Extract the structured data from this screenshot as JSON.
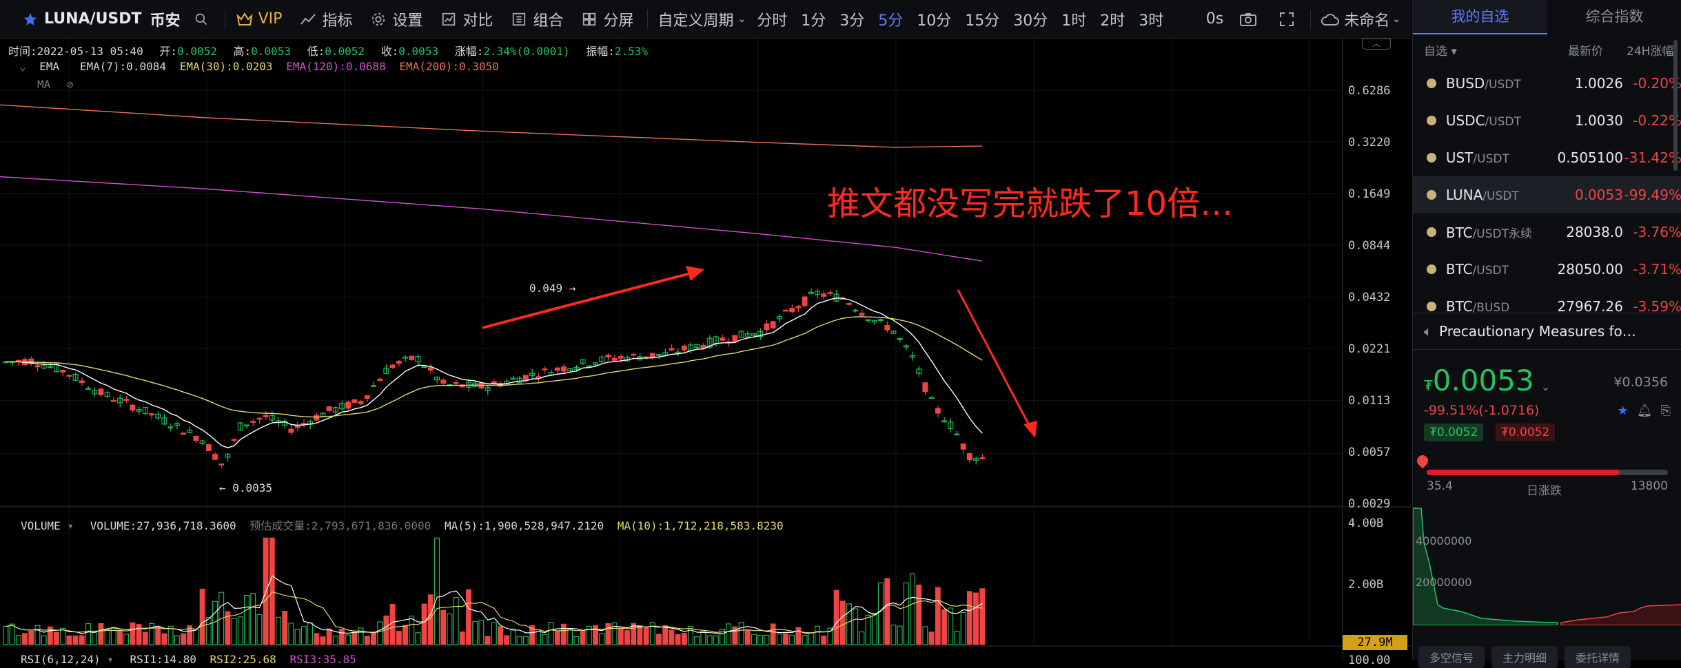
{
  "toolbar": {
    "symbol": "LUNA/USDT",
    "exchange": "币安",
    "vip": "VIP",
    "indicators": "指标",
    "settings": "设置",
    "compare": "对比",
    "combo": "组合",
    "split": "分屏",
    "custom_period": "自定义周期",
    "periods": [
      "分时",
      "1分",
      "3分",
      "5分",
      "10分",
      "15分",
      "30分",
      "1时",
      "2时",
      "3时"
    ],
    "active_period": "5分",
    "countdown": "0s",
    "cloud_label": "未命名"
  },
  "ohlc": {
    "time_label": "时间:",
    "time": "2022-05-13 05:40",
    "open_label": "开:",
    "open": "0.0052",
    "high_label": "高:",
    "high": "0.0053",
    "low_label": "低:",
    "low": "0.0052",
    "close_label": "收:",
    "close": "0.0053",
    "chg_label": "涨幅:",
    "chg": "2.34%(0.0001)",
    "amp_label": "振幅:",
    "amp": "2.53%"
  },
  "ema": {
    "name": "EMA",
    "e7": "EMA(7):0.0084",
    "e30": "EMA(30):0.0203",
    "e120": "EMA(120):0.0688",
    "e200": "EMA(200):0.3050"
  },
  "ma_label": "MA",
  "volume": {
    "name": "VOLUME",
    "vol": "VOLUME:27,936,718.3600",
    "est": "预估成交量:2,793,671,836.0000",
    "ma5": "MA(5):1,900,528,947.2120",
    "ma10": "MA(10):1,712,218,583.8230"
  },
  "rsi": {
    "name": "RSI(6,12,24)",
    "r1": "RSI1:14.80",
    "r2": "RSI2:25.68",
    "r3": "RSI3:35.85",
    "axis": "100.00"
  },
  "price_axis": [
    "0.6286",
    "0.3220",
    "0.1649",
    "0.0844",
    "0.0432",
    "0.0221",
    "0.0113",
    "0.0057",
    "0.0029"
  ],
  "vol_axis": [
    "4.00B",
    "2.00B"
  ],
  "vol_current": "27.9M",
  "marks": {
    "high": "0.049",
    "low": "0.0035"
  },
  "annotation": "推文都没写完就跌了10倍…",
  "colors": {
    "up": "#22c55e",
    "down": "#ef4444",
    "ema7": "#ffffff",
    "ema30": "#e3d96a",
    "ema120": "#d14fd1",
    "ema200": "#e8725a",
    "annot": "#ff2a1e",
    "accent": "#5b7cff"
  },
  "sidebar": {
    "tab_mine": "我的自选",
    "tab_index": "综合指数",
    "col_group": "自选",
    "col_price": "最新价",
    "col_change": "24H涨幅",
    "items": [
      {
        "base": "BUSD",
        "quote": "/USDT",
        "price": "1.0026",
        "change": "-0.20%"
      },
      {
        "base": "USDC",
        "quote": "/USDT",
        "price": "1.0030",
        "change": "-0.22%"
      },
      {
        "base": "UST",
        "quote": "/USDT",
        "price": "0.505100",
        "change": "-31.42%"
      },
      {
        "base": "LUNA",
        "quote": "/USDT",
        "price": "0.0053",
        "change": "-99.49%"
      },
      {
        "base": "BTC",
        "quote": "/USDT永续",
        "price": "28038.0",
        "change": "-3.76%"
      },
      {
        "base": "BTC",
        "quote": "/USDT",
        "price": "28050.00",
        "change": "-3.71%"
      },
      {
        "base": "BTC",
        "quote": "/BUSD",
        "price": "27967.26",
        "change": "-3.59%"
      }
    ],
    "news": "Precautionary Measures fo…",
    "big_price": "0.0053",
    "currency": "₮",
    "cny": "¥0.0356",
    "change": "-99.51%(-1.0716)",
    "tag1": "₮0.0052",
    "tag2": "₮0.0052",
    "range_low": "35.4",
    "range_label": "日涨跌",
    "range_high": "13800",
    "depth_y1": "40000000",
    "depth_y2": "20000000",
    "bottom_tabs": [
      "多空信号",
      "主力明细",
      "委托详情"
    ]
  }
}
